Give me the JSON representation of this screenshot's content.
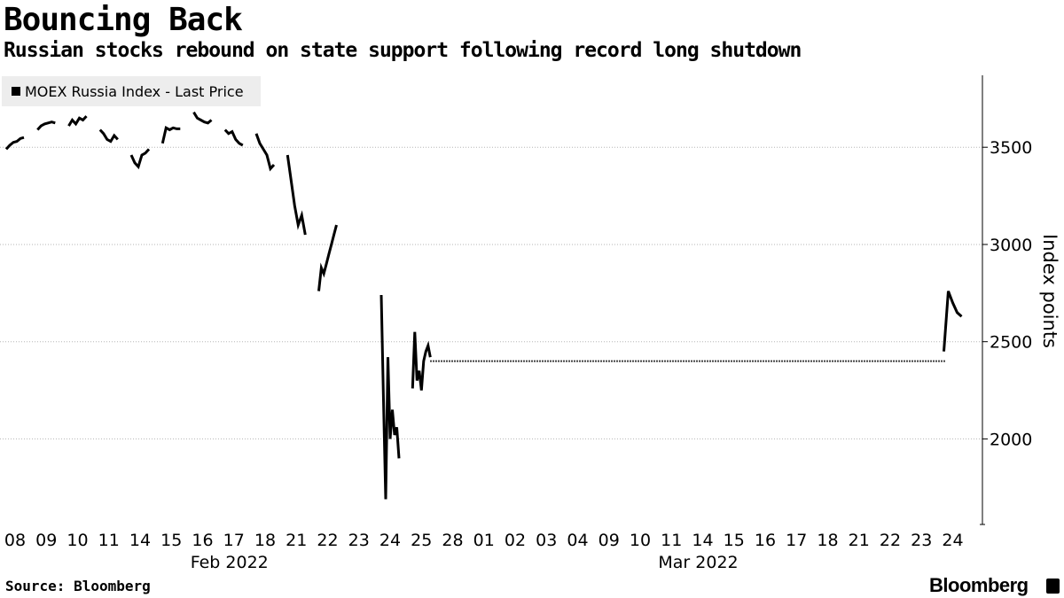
{
  "header": {
    "title": "Bouncing Back",
    "subtitle": "Russian stocks rebound on state support following record long shutdown"
  },
  "legend": {
    "label": "MOEX Russia Index - Last Price"
  },
  "footer": {
    "source": "Source: Bloomberg",
    "brand": "Bloomberg"
  },
  "colors": {
    "line": "#000000",
    "grid": "#b5b5b5",
    "legend_bg": "#ededed"
  },
  "chart_data": {
    "type": "line",
    "ylabel": "Index points",
    "xlabel": "",
    "ylim": [
      1560,
      3870
    ],
    "yticks": [
      2000,
      2500,
      3000,
      3500
    ],
    "grid": true,
    "legend_position": "top-left",
    "categories": [
      "08",
      "09",
      "10",
      "11",
      "14",
      "15",
      "16",
      "17",
      "18",
      "21",
      "22",
      "23",
      "24",
      "25",
      "28",
      "01",
      "02",
      "03",
      "04",
      "09",
      "10",
      "11",
      "14",
      "15",
      "16",
      "17",
      "18",
      "21",
      "22",
      "23",
      "24"
    ],
    "month_labels": [
      {
        "label": "Feb 2022",
        "at_category": 7
      },
      {
        "label": "Mar 2022",
        "at_category": 22
      }
    ],
    "series": [
      {
        "name": "MOEX Russia Index - Last Price",
        "segments": [
          {
            "category": 0,
            "values": [
              3490,
              3510,
              3525,
              3530,
              3545,
              3550
            ]
          },
          {
            "category": 1,
            "values": [
              3590,
              3610,
              3620,
              3625,
              3630,
              3625
            ]
          },
          {
            "category": 2,
            "values": [
              3610,
              3640,
              3620,
              3650,
              3640,
              3660
            ]
          },
          {
            "category": 3,
            "values": [
              3590,
              3570,
              3540,
              3530,
              3560,
              3540
            ]
          },
          {
            "category": 4,
            "values": [
              3460,
              3420,
              3400,
              3460,
              3470,
              3490
            ]
          },
          {
            "category": 5,
            "values": [
              3520,
              3600,
              3590,
              3600,
              3595,
              3595
            ]
          },
          {
            "category": 6,
            "values": [
              3680,
              3650,
              3640,
              3630,
              3625,
              3640
            ]
          },
          {
            "category": 7,
            "values": [
              3590,
              3570,
              3580,
              3540,
              3520,
              3510
            ]
          },
          {
            "category": 8,
            "values": [
              3570,
              3520,
              3490,
              3460,
              3390,
              3410
            ]
          },
          {
            "category": 9,
            "values": [
              3460,
              3330,
              3200,
              3100,
              3150,
              3050
            ]
          },
          {
            "category": 10,
            "values": [
              2760,
              2880,
              2850,
              2900,
              2950,
              3000,
              3050,
              3100
            ]
          },
          {
            "category": 12,
            "values": [
              2740,
              2200,
              1690,
              2420,
              2000,
              2150,
              2020,
              2060,
              1900
            ]
          },
          {
            "category": 13,
            "values": [
              2260,
              2550,
              2300,
              2350,
              2250,
              2400,
              2450,
              2480,
              2420
            ]
          },
          {
            "category": 30,
            "values": [
              2450,
              2760,
              2700,
              2650,
              2630
            ]
          }
        ],
        "gap": {
          "from_category": 13,
          "to_category": 30,
          "value": 2400,
          "style": "dotted"
        }
      }
    ]
  }
}
